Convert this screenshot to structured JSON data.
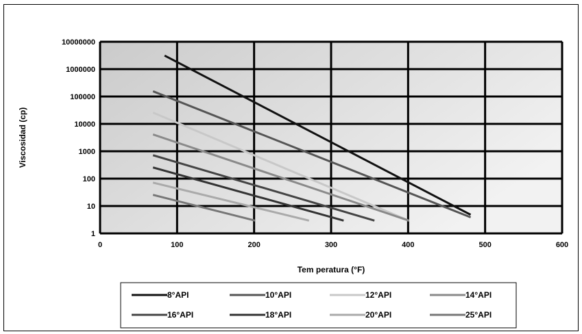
{
  "chart_data": {
    "type": "line",
    "title": "",
    "xlabel": "Tem peratura (°F)",
    "ylabel": "Viscosidad (cp)",
    "x_scale": "linear",
    "y_scale": "log",
    "xlim": [
      0,
      600
    ],
    "ylim": [
      1,
      10000000
    ],
    "x_ticks": [
      "0",
      "100",
      "200",
      "300",
      "400",
      "500",
      "600"
    ],
    "y_ticks": [
      "1",
      "10",
      "100",
      "1000",
      "10000",
      "100000",
      "1000000",
      "10000000"
    ],
    "grid": true,
    "legend_position": "bottom",
    "series": [
      {
        "name": "8°API",
        "color": "#111111",
        "x": [
          85,
          480
        ],
        "y": [
          3000000,
          5
        ]
      },
      {
        "name": "10°API",
        "color": "#555555",
        "x": [
          70,
          480
        ],
        "y": [
          150000,
          4
        ]
      },
      {
        "name": "12°API",
        "color": "#c8c8c8",
        "x": [
          70,
          400
        ],
        "y": [
          25000,
          3
        ]
      },
      {
        "name": "14°API",
        "color": "#8a8a8a",
        "x": [
          70,
          400
        ],
        "y": [
          4000,
          3
        ]
      },
      {
        "name": "16°API",
        "color": "#444444",
        "x": [
          70,
          355
        ],
        "y": [
          700,
          3
        ]
      },
      {
        "name": "18°API",
        "color": "#333333",
        "x": [
          70,
          315
        ],
        "y": [
          250,
          3
        ]
      },
      {
        "name": "20°API",
        "color": "#aaaaaa",
        "x": [
          70,
          270
        ],
        "y": [
          70,
          3
        ]
      },
      {
        "name": "25°API",
        "color": "#777777",
        "x": [
          70,
          200
        ],
        "y": [
          25,
          3
        ]
      }
    ]
  }
}
